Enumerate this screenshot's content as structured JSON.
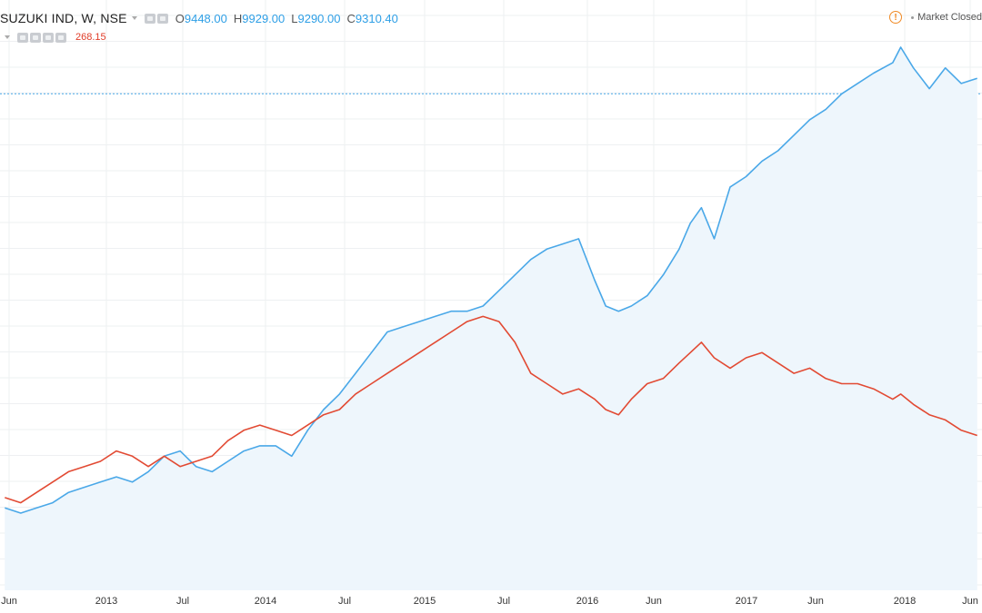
{
  "legend": {
    "symbol": "SUZUKI IND, W, NSE",
    "ohlc": [
      {
        "k": "O",
        "v": "9448.00"
      },
      {
        "k": "H",
        "v": "9929.00"
      },
      {
        "k": "L",
        "v": "9290.00"
      },
      {
        "k": "C",
        "v": "9310.40"
      }
    ],
    "compare_value": "268.15"
  },
  "status": {
    "text": "Market Closed",
    "icon": "warning-icon"
  },
  "colors": {
    "primary": "#4aa8e8",
    "compare": "#e24a33",
    "fill": "#eef6fc",
    "grid": "#eef0f2"
  },
  "chart_data": {
    "type": "line",
    "grid": true,
    "x_tick_labels": [
      "Jun",
      "2013",
      "Jul",
      "2014",
      "Jul",
      "2015",
      "Jul",
      "2016",
      "Jun",
      "2017",
      "Jun",
      "2018",
      "Jun"
    ],
    "ylim": [
      0,
      100
    ],
    "reference_line": 91,
    "series": [
      {
        "color": "#4aa8e8",
        "area": true,
        "x": [
          2012.35,
          2012.45,
          2012.55,
          2012.65,
          2012.75,
          2012.85,
          2012.95,
          2013.05,
          2013.15,
          2013.25,
          2013.35,
          2013.45,
          2013.55,
          2013.65,
          2013.75,
          2013.85,
          2013.95,
          2014.05,
          2014.15,
          2014.25,
          2014.35,
          2014.45,
          2014.55,
          2014.65,
          2014.75,
          2014.85,
          2014.95,
          2015.05,
          2015.15,
          2015.25,
          2015.35,
          2015.45,
          2015.55,
          2015.65,
          2015.75,
          2015.85,
          2015.95,
          2016.05,
          2016.12,
          2016.2,
          2016.28,
          2016.38,
          2016.48,
          2016.58,
          2016.65,
          2016.72,
          2016.8,
          2016.9,
          2017.0,
          2017.1,
          2017.2,
          2017.3,
          2017.4,
          2017.5,
          2017.6,
          2017.7,
          2017.8,
          2017.92,
          2017.97,
          2018.05,
          2018.15,
          2018.25,
          2018.35,
          2018.45
        ],
        "values": [
          11,
          10,
          11,
          12,
          14,
          15,
          16,
          17,
          16,
          18,
          21,
          22,
          19,
          18,
          20,
          22,
          23,
          23,
          21,
          26,
          30,
          33,
          37,
          41,
          45,
          46,
          47,
          48,
          49,
          49,
          50,
          53,
          56,
          59,
          61,
          62,
          63,
          55,
          50,
          49,
          50,
          52,
          56,
          61,
          66,
          69,
          63,
          73,
          75,
          78,
          80,
          83,
          86,
          88,
          91,
          93,
          95,
          97,
          100,
          96,
          92,
          96,
          93,
          94
        ]
      },
      {
        "color": "#e24a33",
        "area": false,
        "x": [
          2012.35,
          2012.45,
          2012.55,
          2012.65,
          2012.75,
          2012.85,
          2012.95,
          2013.05,
          2013.15,
          2013.25,
          2013.35,
          2013.45,
          2013.55,
          2013.65,
          2013.75,
          2013.85,
          2013.95,
          2014.05,
          2014.15,
          2014.25,
          2014.35,
          2014.45,
          2014.55,
          2014.65,
          2014.75,
          2014.85,
          2014.95,
          2015.05,
          2015.15,
          2015.25,
          2015.35,
          2015.45,
          2015.55,
          2015.65,
          2015.75,
          2015.85,
          2015.95,
          2016.05,
          2016.12,
          2016.2,
          2016.28,
          2016.38,
          2016.48,
          2016.58,
          2016.65,
          2016.72,
          2016.8,
          2016.9,
          2017.0,
          2017.1,
          2017.2,
          2017.3,
          2017.4,
          2017.5,
          2017.6,
          2017.7,
          2017.8,
          2017.92,
          2017.97,
          2018.05,
          2018.15,
          2018.25,
          2018.35,
          2018.45
        ],
        "values": [
          13,
          12,
          14,
          16,
          18,
          19,
          20,
          22,
          21,
          19,
          21,
          19,
          20,
          21,
          24,
          26,
          27,
          26,
          25,
          27,
          29,
          30,
          33,
          35,
          37,
          39,
          41,
          43,
          45,
          47,
          48,
          47,
          43,
          37,
          35,
          33,
          34,
          32,
          30,
          29,
          32,
          35,
          36,
          39,
          41,
          43,
          40,
          38,
          40,
          41,
          39,
          37,
          38,
          36,
          35,
          35,
          34,
          32,
          33,
          31,
          29,
          28,
          26,
          25
        ]
      }
    ]
  }
}
